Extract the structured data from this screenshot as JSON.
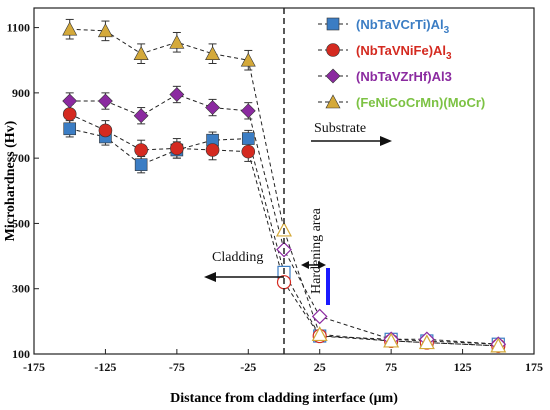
{
  "chart_data": {
    "type": "scatter",
    "xlabel": "Distance from cladding interface (μm)",
    "ylabel": "Microhardness (Hv)",
    "xlim": [
      -175,
      175
    ],
    "ylim": [
      100,
      1160
    ],
    "xticks": [
      -175,
      -125,
      -75,
      -25,
      25,
      75,
      125,
      175
    ],
    "yticks": [
      100,
      300,
      500,
      700,
      900,
      1100
    ],
    "grid": false,
    "legend_position": "top-right",
    "series": [
      {
        "name": "(NbTaVCrTi)Al",
        "name_sub": "3",
        "color": "#3b7dc4",
        "marker": "square",
        "x": [
          -150,
          -125,
          -100,
          -75,
          -50,
          -25,
          0,
          25,
          75,
          100,
          150
        ],
        "y": [
          790,
          765,
          680,
          725,
          755,
          760,
          350,
          155,
          145,
          140,
          130
        ],
        "err": [
          25,
          25,
          25,
          25,
          25,
          25,
          0,
          0,
          0,
          0,
          0
        ]
      },
      {
        "name": "(NbTaVNiFe)Al",
        "name_sub": "3",
        "color": "#d42a20",
        "marker": "circle",
        "x": [
          -150,
          -125,
          -100,
          -75,
          -50,
          -25,
          0,
          25,
          75,
          100,
          150
        ],
        "y": [
          835,
          785,
          725,
          730,
          725,
          720,
          320,
          155,
          140,
          135,
          125
        ],
        "err": [
          30,
          30,
          30,
          30,
          30,
          30,
          0,
          0,
          0,
          0,
          0
        ]
      },
      {
        "name": "(NbTaVZrHf)Al3",
        "name_sub": "",
        "color": "#8b2aa0",
        "marker": "diamond",
        "x": [
          -150,
          -125,
          -100,
          -75,
          -50,
          -25,
          0,
          25,
          75,
          100,
          150
        ],
        "y": [
          875,
          875,
          830,
          895,
          855,
          845,
          420,
          215,
          145,
          145,
          130
        ],
        "err": [
          25,
          25,
          25,
          25,
          25,
          25,
          0,
          0,
          0,
          0,
          0
        ]
      },
      {
        "name": "(FeNiCoCrMn)(MoCr)",
        "name_sub": "",
        "color": "#d4a93a",
        "marker": "triangle",
        "x": [
          -150,
          -125,
          -100,
          -75,
          -50,
          -25,
          0,
          25,
          75,
          100,
          150
        ],
        "y": [
          1095,
          1090,
          1020,
          1055,
          1020,
          1000,
          480,
          160,
          140,
          135,
          125
        ],
        "err": [
          30,
          30,
          30,
          30,
          30,
          30,
          0,
          0,
          0,
          0,
          0
        ]
      }
    ],
    "annotations": {
      "substrate": "Substrate",
      "cladding": "Cladding",
      "hardening": "Hardening area"
    },
    "legend_text_colors": {
      "s0": "#3b7dc4",
      "s1": "#d42a20",
      "s2": "#8b2aa0",
      "s3": "#7cc243"
    },
    "blue_marker_color": "#1a1aff"
  }
}
